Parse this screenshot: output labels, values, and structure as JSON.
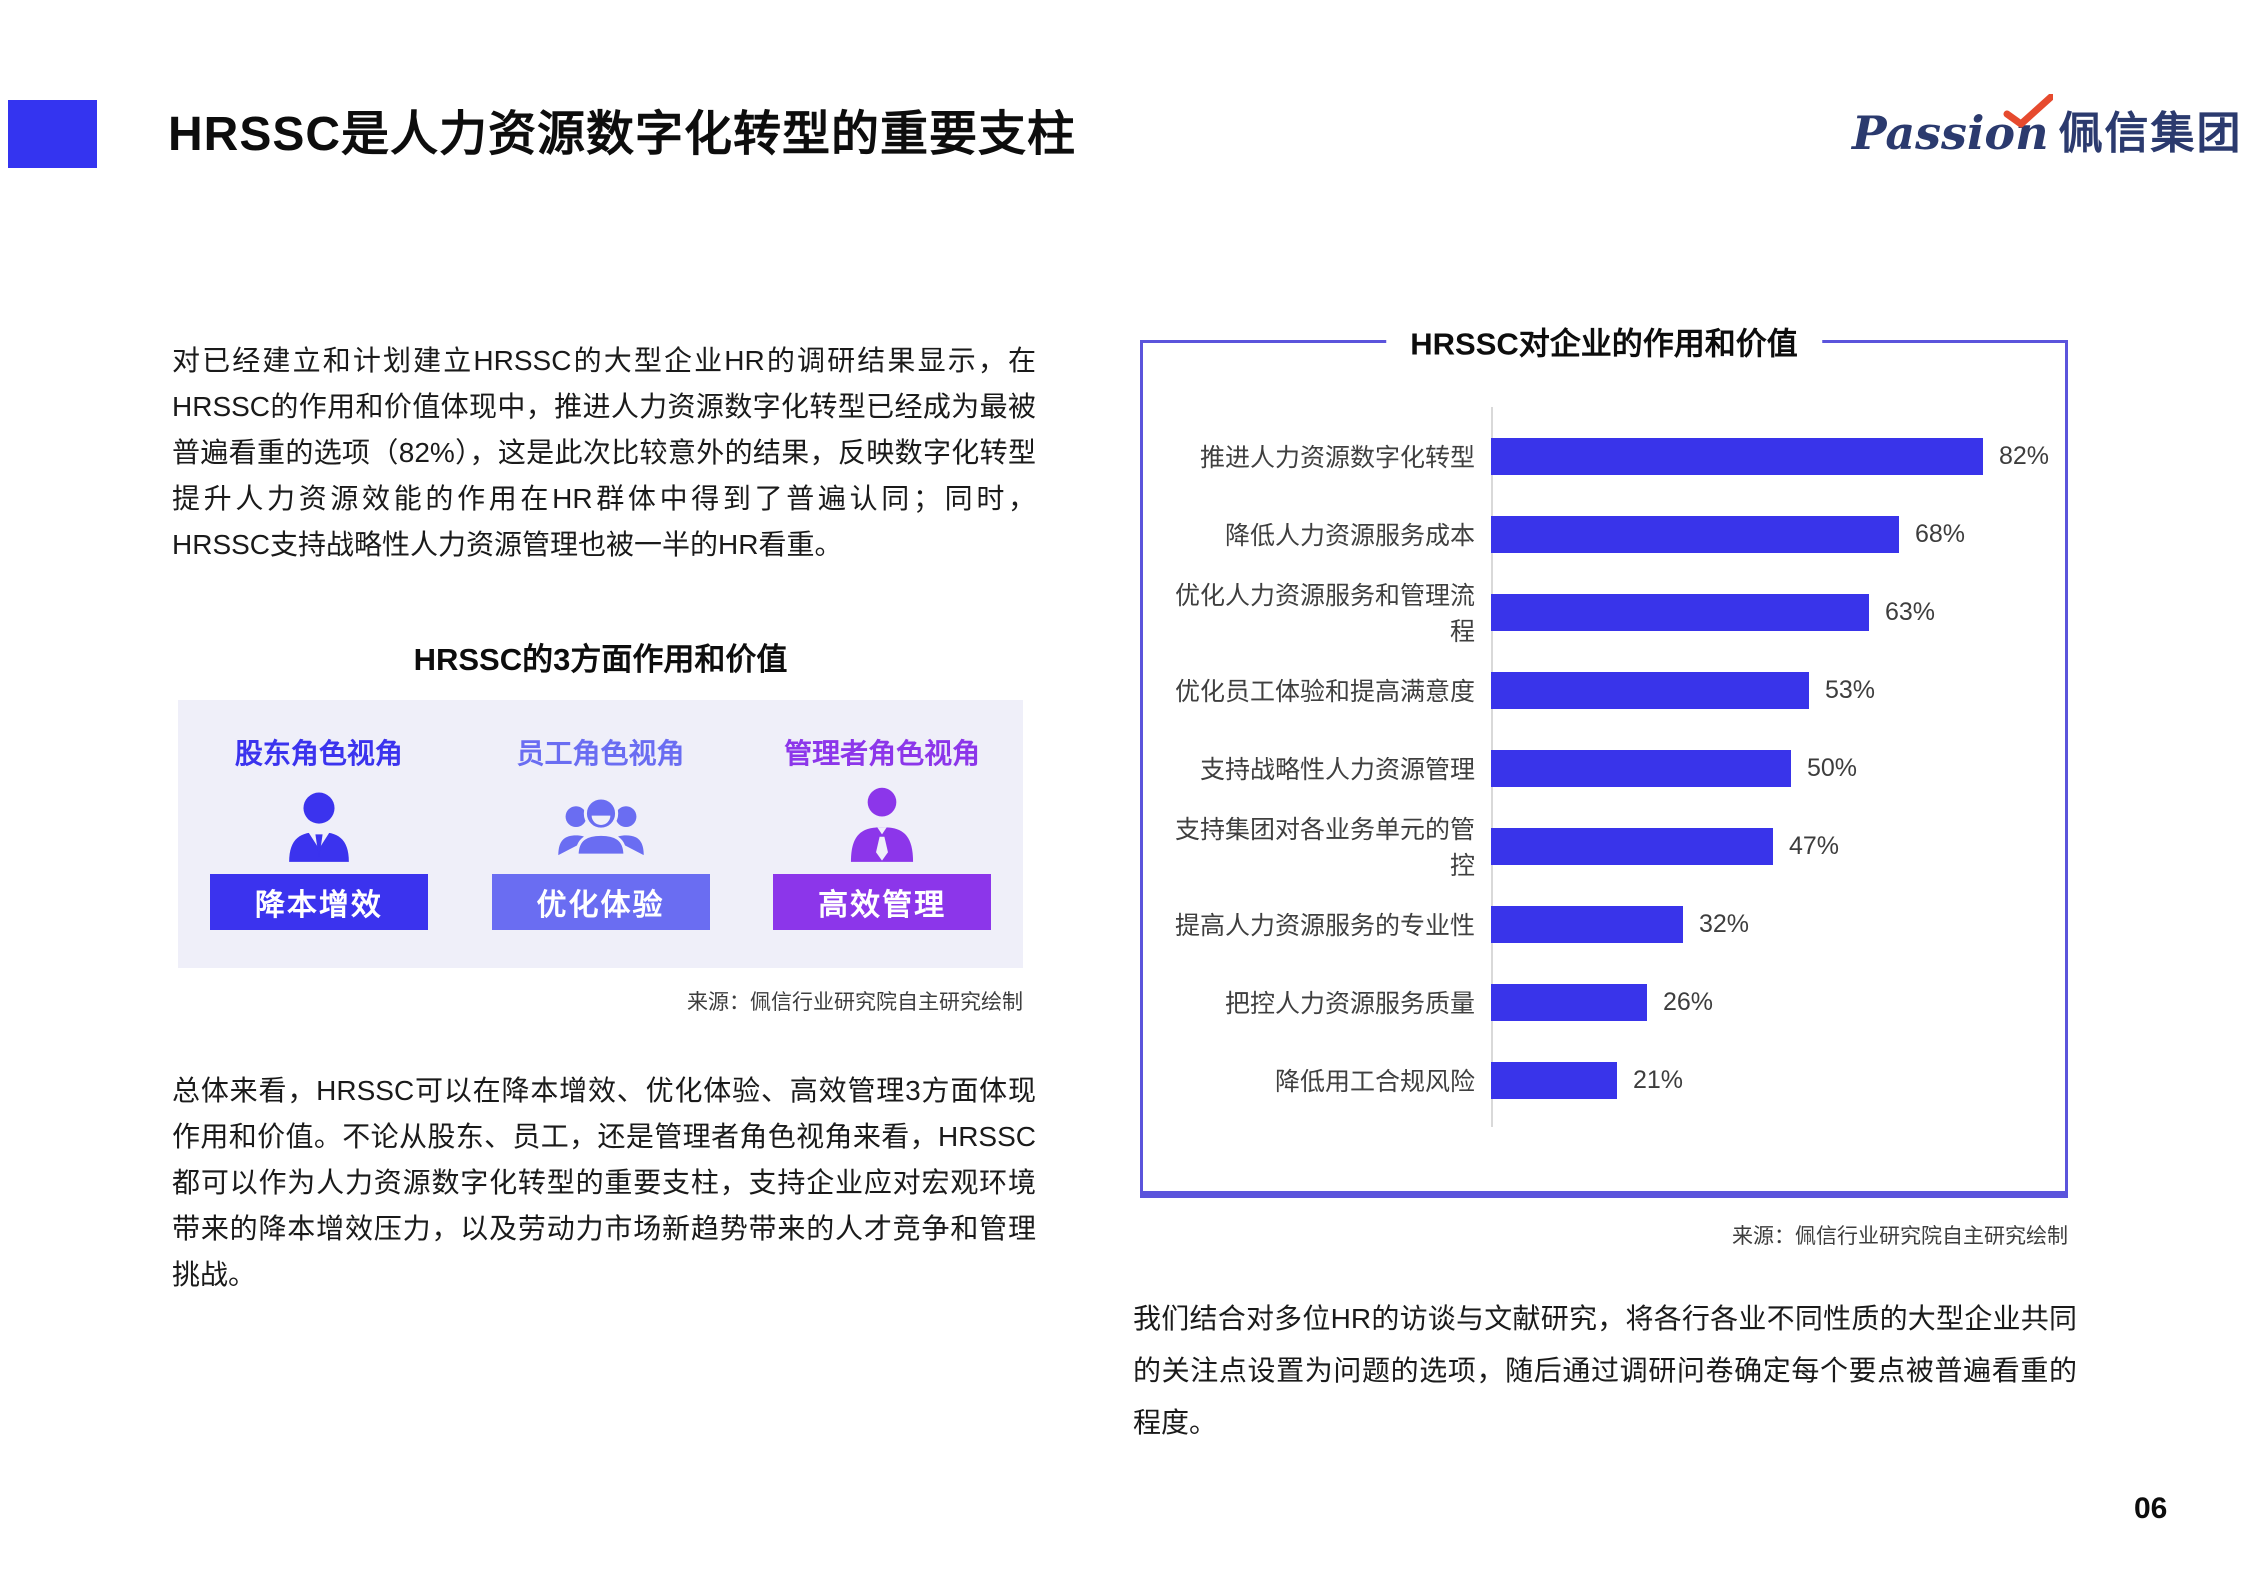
{
  "header": {
    "title": "HRSSC是人力资源数字化转型的重要支柱",
    "logo": {
      "script": "Passion",
      "name": "佩信集团",
      "text_color": "#2b3a6e",
      "check_color": "#e64a2e"
    },
    "accent_bar_color": "#3434f0"
  },
  "left": {
    "paragraph1": "对已经建立和计划建立HRSSC的大型企业HR的调研结果显示，在HRSSC的作用和价值体现中，推进人力资源数字化转型已经成为最被普遍看重的选项（82%），这是此次比较意外的结果，反映数字化转型提升人力资源效能的作用在HR群体中得到了普遍认同；同时，HRSSC支持战略性人力资源管理也被一半的HR看重。",
    "section_title": "HRSSC的3方面作用和价值",
    "roles": [
      {
        "header": "股东角色视角",
        "button": "降本增效",
        "color": "#3b33ee",
        "icon": "businessman-icon"
      },
      {
        "header": "员工角色视角",
        "button": "优化体验",
        "color": "#6a6df2",
        "icon": "employee-group-icon"
      },
      {
        "header": "管理者角色视角",
        "button": "高效管理",
        "color": "#8c36ea",
        "icon": "manager-icon"
      }
    ],
    "source": "来源：佩信行业研究院自主研究绘制",
    "paragraph2": "总体来看，HRSSC可以在降本增效、优化体验、高效管理3方面体现作用和价值。不论从股东、员工，还是管理者角色视角来看，HRSSC都可以作为人力资源数字化转型的重要支柱，支持企业应对宏观环境带来的降本增效压力，以及劳动力市场新趋势带来的人才竞争和管理挑战。"
  },
  "chart_data": {
    "type": "bar",
    "orientation": "horizontal",
    "title": "HRSSC对企业的作用和价值",
    "categories": [
      "推进人力资源数字化转型",
      "降低人力资源服务成本",
      "优化人力资源服务和管理流程",
      "优化员工体验和提高满意度",
      "支持战略性人力资源管理",
      "支持集团对各业务单元的管控",
      "提高人力资源服务的专业性",
      "把控人力资源服务质量",
      "降低用工合规风险"
    ],
    "values": [
      82,
      68,
      63,
      53,
      50,
      47,
      32,
      26,
      21
    ],
    "value_labels": [
      "82%",
      "68%",
      "63%",
      "53%",
      "50%",
      "47%",
      "32%",
      "26%",
      "21%"
    ],
    "xlim": [
      0,
      100
    ],
    "bar_color": "#3934ea",
    "axis_line_color": "#d9d9d9",
    "border_color": "#5b54dc",
    "grid": false,
    "source": "来源：佩信行业研究院自主研究绘制"
  },
  "right_paragraph": "我们结合对多位HR的访谈与文献研究，将各行各业不同性质的大型企业共同的关注点设置为问题的选项，随后通过调研问卷确定每个要点被普遍看重的程度。",
  "page_number": "06"
}
